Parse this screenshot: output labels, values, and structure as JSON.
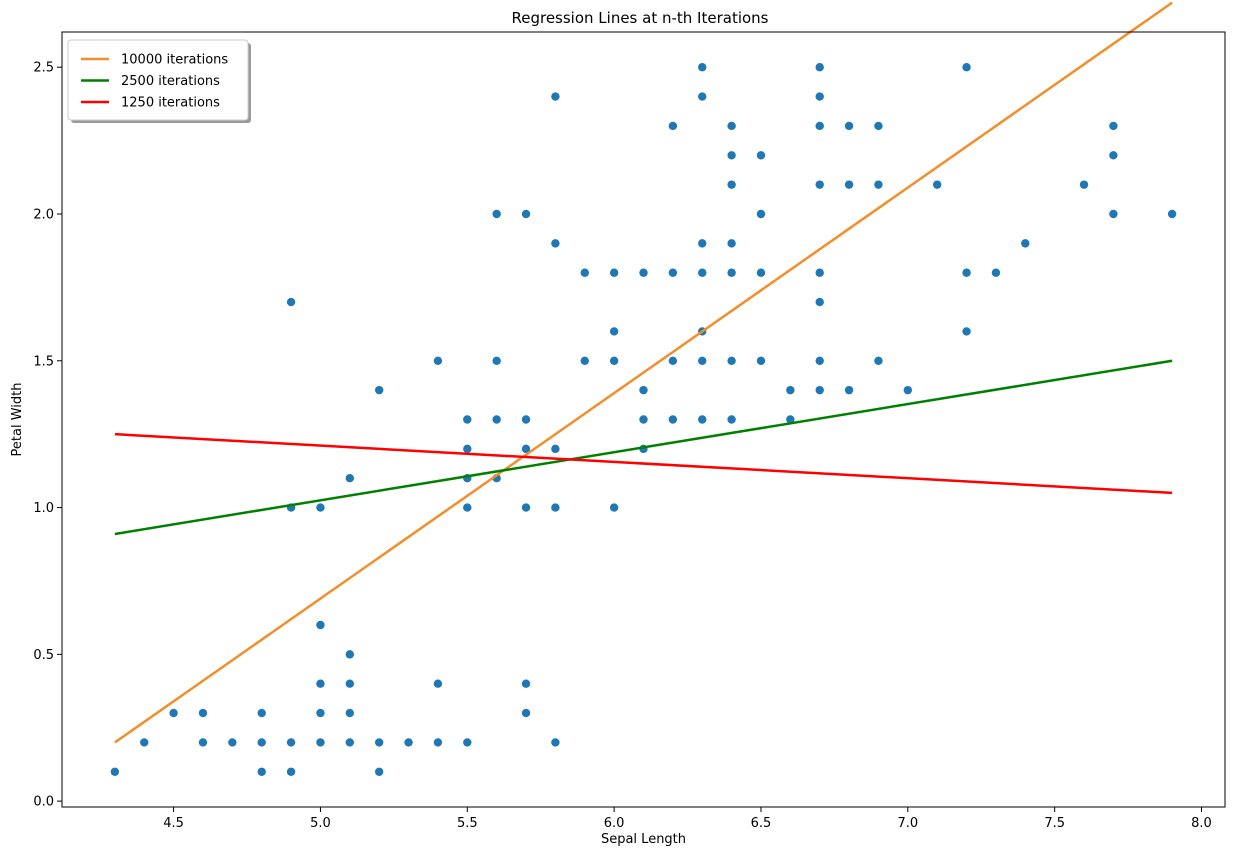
{
  "chart_data": {
    "type": "scatter",
    "title": "Regression Lines at n-th Iterations",
    "xlabel": "Sepal Length",
    "ylabel": "Petal Width",
    "xlim": [
      4.12,
      8.08
    ],
    "ylim": [
      -0.02,
      2.62
    ],
    "xticks": [
      4.5,
      5.0,
      5.5,
      6.0,
      6.5,
      7.0,
      7.5,
      8.0
    ],
    "xtick_labels": [
      "4.5",
      "5.0",
      "5.5",
      "6.0",
      "6.5",
      "7.0",
      "7.5",
      "8.0"
    ],
    "yticks": [
      0.0,
      0.5,
      1.0,
      1.5,
      2.0,
      2.5
    ],
    "ytick_labels": [
      "0.0",
      "0.5",
      "1.0",
      "1.5",
      "2.0",
      "2.5"
    ],
    "grid": false,
    "legend_position": "top-left",
    "point_color": "#1f77b4",
    "points": [
      [
        4.3,
        0.1
      ],
      [
        4.4,
        0.2
      ],
      [
        4.5,
        0.3
      ],
      [
        4.6,
        0.3
      ],
      [
        4.6,
        0.2
      ],
      [
        4.7,
        0.2
      ],
      [
        4.8,
        0.3
      ],
      [
        4.8,
        0.2
      ],
      [
        4.8,
        0.1
      ],
      [
        4.9,
        0.2
      ],
      [
        4.9,
        0.1
      ],
      [
        4.9,
        1.0
      ],
      [
        4.9,
        1.7
      ],
      [
        5.0,
        0.2
      ],
      [
        5.0,
        0.3
      ],
      [
        5.0,
        0.4
      ],
      [
        5.0,
        0.6
      ],
      [
        5.0,
        1.0
      ],
      [
        5.1,
        0.2
      ],
      [
        5.1,
        0.3
      ],
      [
        5.1,
        0.4
      ],
      [
        5.1,
        0.5
      ],
      [
        5.1,
        1.1
      ],
      [
        5.2,
        0.1
      ],
      [
        5.2,
        0.2
      ],
      [
        5.2,
        1.4
      ],
      [
        5.3,
        0.2
      ],
      [
        5.4,
        0.2
      ],
      [
        5.4,
        0.4
      ],
      [
        5.4,
        1.5
      ],
      [
        5.5,
        0.2
      ],
      [
        5.5,
        1.0
      ],
      [
        5.5,
        1.1
      ],
      [
        5.5,
        1.2
      ],
      [
        5.5,
        1.3
      ],
      [
        5.6,
        1.1
      ],
      [
        5.6,
        1.3
      ],
      [
        5.6,
        1.5
      ],
      [
        5.6,
        2.0
      ],
      [
        5.7,
        0.3
      ],
      [
        5.7,
        0.4
      ],
      [
        5.7,
        1.0
      ],
      [
        5.7,
        1.2
      ],
      [
        5.7,
        1.3
      ],
      [
        5.7,
        2.0
      ],
      [
        5.8,
        0.2
      ],
      [
        5.8,
        1.0
      ],
      [
        5.8,
        1.2
      ],
      [
        5.8,
        1.9
      ],
      [
        5.8,
        2.4
      ],
      [
        5.9,
        1.5
      ],
      [
        5.9,
        1.8
      ],
      [
        6.0,
        1.0
      ],
      [
        6.0,
        1.5
      ],
      [
        6.0,
        1.6
      ],
      [
        6.0,
        1.8
      ],
      [
        6.1,
        1.2
      ],
      [
        6.1,
        1.3
      ],
      [
        6.1,
        1.4
      ],
      [
        6.1,
        1.8
      ],
      [
        6.2,
        1.3
      ],
      [
        6.2,
        1.5
      ],
      [
        6.2,
        1.8
      ],
      [
        6.2,
        2.3
      ],
      [
        6.3,
        1.3
      ],
      [
        6.3,
        1.5
      ],
      [
        6.3,
        1.6
      ],
      [
        6.3,
        1.8
      ],
      [
        6.3,
        1.9
      ],
      [
        6.3,
        2.4
      ],
      [
        6.3,
        2.5
      ],
      [
        6.4,
        1.3
      ],
      [
        6.4,
        1.5
      ],
      [
        6.4,
        1.8
      ],
      [
        6.4,
        1.9
      ],
      [
        6.4,
        2.1
      ],
      [
        6.4,
        2.2
      ],
      [
        6.4,
        2.3
      ],
      [
        6.5,
        1.5
      ],
      [
        6.5,
        1.8
      ],
      [
        6.5,
        2.0
      ],
      [
        6.5,
        2.2
      ],
      [
        6.6,
        1.3
      ],
      [
        6.6,
        1.4
      ],
      [
        6.7,
        1.4
      ],
      [
        6.7,
        1.5
      ],
      [
        6.7,
        1.7
      ],
      [
        6.7,
        1.8
      ],
      [
        6.7,
        2.1
      ],
      [
        6.7,
        2.3
      ],
      [
        6.7,
        2.4
      ],
      [
        6.7,
        2.5
      ],
      [
        6.8,
        1.4
      ],
      [
        6.8,
        2.1
      ],
      [
        6.8,
        2.3
      ],
      [
        6.9,
        1.5
      ],
      [
        6.9,
        2.1
      ],
      [
        6.9,
        2.3
      ],
      [
        7.0,
        1.4
      ],
      [
        7.1,
        2.1
      ],
      [
        7.2,
        1.6
      ],
      [
        7.2,
        1.8
      ],
      [
        7.2,
        2.5
      ],
      [
        7.3,
        1.8
      ],
      [
        7.4,
        1.9
      ],
      [
        7.6,
        2.1
      ],
      [
        7.7,
        2.0
      ],
      [
        7.7,
        2.2
      ],
      [
        7.7,
        2.3
      ],
      [
        7.9,
        2.0
      ]
    ],
    "series": [
      {
        "name": "10000 iterations",
        "color": "#f28e2b",
        "x": [
          4.3,
          7.9
        ],
        "y": [
          0.2,
          2.72
        ]
      },
      {
        "name": "2500 iterations",
        "color": "#008000",
        "x": [
          4.3,
          7.9
        ],
        "y": [
          0.91,
          1.5
        ]
      },
      {
        "name": "1250 iterations",
        "color": "#ff0000",
        "x": [
          4.3,
          7.9
        ],
        "y": [
          1.25,
          1.05
        ]
      }
    ]
  }
}
